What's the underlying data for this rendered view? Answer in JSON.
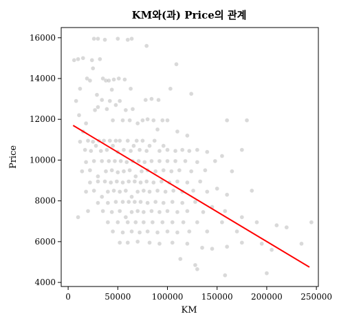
{
  "chart_data": {
    "type": "scatter",
    "title": "KM와(과) Price의 관계",
    "xlabel": "KM",
    "ylabel": "Price",
    "xlim": [
      -7000,
      252000
    ],
    "ylim": [
      3800,
      16500
    ],
    "xticks": [
      0,
      50000,
      100000,
      150000,
      200000,
      250000
    ],
    "yticks": [
      4000,
      6000,
      8000,
      10000,
      12000,
      14000,
      16000
    ],
    "grid": false,
    "point_color": "#808080",
    "point_alpha": 0.3,
    "line_color": "#ff0000",
    "regression_line": {
      "x": [
        5000,
        243000
      ],
      "y": [
        11700,
        4750
      ]
    },
    "series": [
      {
        "values": [
          [
            6000,
            14900
          ],
          [
            10000,
            14950
          ],
          [
            15000,
            15000
          ],
          [
            24000,
            14900
          ],
          [
            26000,
            15950
          ],
          [
            30000,
            15950
          ],
          [
            32000,
            14950
          ],
          [
            37000,
            15900
          ],
          [
            50000,
            15950
          ],
          [
            64000,
            15950
          ],
          [
            60000,
            15900
          ],
          [
            79000,
            15600
          ],
          [
            109000,
            14700
          ],
          [
            12000,
            13500
          ],
          [
            19000,
            14000
          ],
          [
            22000,
            13900
          ],
          [
            25000,
            14500
          ],
          [
            29000,
            13200
          ],
          [
            35000,
            14000
          ],
          [
            38000,
            13900
          ],
          [
            41000,
            13900
          ],
          [
            44000,
            13450
          ],
          [
            46000,
            13950
          ],
          [
            51000,
            14000
          ],
          [
            57000,
            13950
          ],
          [
            63000,
            13500
          ],
          [
            78000,
            12950
          ],
          [
            84000,
            13000
          ],
          [
            91000,
            12950
          ],
          [
            103000,
            13500
          ],
          [
            124000,
            13250
          ],
          [
            8000,
            12900
          ],
          [
            11000,
            12200
          ],
          [
            18000,
            11800
          ],
          [
            27000,
            12450
          ],
          [
            30000,
            12600
          ],
          [
            34000,
            12950
          ],
          [
            39000,
            12500
          ],
          [
            42000,
            12900
          ],
          [
            45000,
            11950
          ],
          [
            48000,
            12700
          ],
          [
            52000,
            12900
          ],
          [
            55000,
            11950
          ],
          [
            58000,
            12450
          ],
          [
            62000,
            11950
          ],
          [
            65000,
            12500
          ],
          [
            70000,
            11800
          ],
          [
            75000,
            11950
          ],
          [
            80000,
            12000
          ],
          [
            86000,
            11950
          ],
          [
            90000,
            11500
          ],
          [
            95000,
            11950
          ],
          [
            100000,
            11950
          ],
          [
            110000,
            11400
          ],
          [
            120000,
            11200
          ],
          [
            160000,
            11950
          ],
          [
            180000,
            11950
          ],
          [
            12000,
            10900
          ],
          [
            15000,
            11400
          ],
          [
            17000,
            10500
          ],
          [
            20000,
            10950
          ],
          [
            23000,
            10450
          ],
          [
            25000,
            10900
          ],
          [
            28000,
            10700
          ],
          [
            31000,
            10950
          ],
          [
            33000,
            10450
          ],
          [
            36000,
            10950
          ],
          [
            39000,
            10500
          ],
          [
            42000,
            10950
          ],
          [
            45000,
            10700
          ],
          [
            48000,
            10950
          ],
          [
            50000,
            10400
          ],
          [
            52000,
            10950
          ],
          [
            56000,
            10500
          ],
          [
            60000,
            10950
          ],
          [
            63000,
            10450
          ],
          [
            66000,
            10700
          ],
          [
            69000,
            10950
          ],
          [
            72000,
            10500
          ],
          [
            75000,
            10950
          ],
          [
            79000,
            10450
          ],
          [
            82000,
            10700
          ],
          [
            87000,
            10950
          ],
          [
            92000,
            10450
          ],
          [
            96000,
            10700
          ],
          [
            100000,
            10500
          ],
          [
            108000,
            10450
          ],
          [
            115000,
            10500
          ],
          [
            122000,
            10450
          ],
          [
            130000,
            10500
          ],
          [
            140000,
            10400
          ],
          [
            155000,
            10200
          ],
          [
            175000,
            10500
          ],
          [
            14000,
            9450
          ],
          [
            18000,
            9900
          ],
          [
            22000,
            9500
          ],
          [
            26000,
            9950
          ],
          [
            30000,
            9200
          ],
          [
            34000,
            9950
          ],
          [
            38000,
            9450
          ],
          [
            41000,
            9950
          ],
          [
            44000,
            9500
          ],
          [
            47000,
            9950
          ],
          [
            50000,
            9400
          ],
          [
            53000,
            9950
          ],
          [
            56000,
            9450
          ],
          [
            59000,
            9900
          ],
          [
            62000,
            9500
          ],
          [
            65000,
            9950
          ],
          [
            68000,
            9200
          ],
          [
            71000,
            9950
          ],
          [
            74000,
            9450
          ],
          [
            77000,
            9900
          ],
          [
            80000,
            9500
          ],
          [
            84000,
            9950
          ],
          [
            88000,
            9450
          ],
          [
            92000,
            9950
          ],
          [
            96000,
            9500
          ],
          [
            100000,
            9950
          ],
          [
            104000,
            9450
          ],
          [
            108000,
            9950
          ],
          [
            112000,
            9500
          ],
          [
            118000,
            9950
          ],
          [
            124000,
            9450
          ],
          [
            130000,
            9900
          ],
          [
            138000,
            9500
          ],
          [
            148000,
            9950
          ],
          [
            165000,
            9450
          ],
          [
            18000,
            8450
          ],
          [
            22000,
            8900
          ],
          [
            26000,
            8500
          ],
          [
            30000,
            8950
          ],
          [
            34000,
            8200
          ],
          [
            37000,
            8950
          ],
          [
            40000,
            8450
          ],
          [
            43000,
            8900
          ],
          [
            46000,
            8500
          ],
          [
            49000,
            8950
          ],
          [
            52000,
            8450
          ],
          [
            55000,
            8900
          ],
          [
            58000,
            8500
          ],
          [
            61000,
            8950
          ],
          [
            64000,
            8200
          ],
          [
            67000,
            8950
          ],
          [
            70000,
            8450
          ],
          [
            73000,
            8900
          ],
          [
            76000,
            8500
          ],
          [
            79000,
            8950
          ],
          [
            82000,
            8450
          ],
          [
            86000,
            8900
          ],
          [
            90000,
            8500
          ],
          [
            94000,
            8950
          ],
          [
            98000,
            8450
          ],
          [
            102000,
            8900
          ],
          [
            106000,
            8500
          ],
          [
            110000,
            8950
          ],
          [
            115000,
            8450
          ],
          [
            120000,
            8900
          ],
          [
            126000,
            8500
          ],
          [
            133000,
            8950
          ],
          [
            140000,
            8450
          ],
          [
            150000,
            8600
          ],
          [
            160000,
            8300
          ],
          [
            185000,
            8500
          ],
          [
            10000,
            7200
          ],
          [
            20000,
            7500
          ],
          [
            30000,
            7900
          ],
          [
            35000,
            7500
          ],
          [
            40000,
            7900
          ],
          [
            44000,
            7450
          ],
          [
            48000,
            7950
          ],
          [
            52000,
            7500
          ],
          [
            55000,
            7950
          ],
          [
            58000,
            7200
          ],
          [
            61000,
            7950
          ],
          [
            64000,
            7450
          ],
          [
            67000,
            7950
          ],
          [
            70000,
            7500
          ],
          [
            73000,
            7950
          ],
          [
            76000,
            7450
          ],
          [
            80000,
            7900
          ],
          [
            84000,
            7500
          ],
          [
            88000,
            7950
          ],
          [
            92000,
            7450
          ],
          [
            96000,
            7900
          ],
          [
            100000,
            7500
          ],
          [
            105000,
            7950
          ],
          [
            110000,
            7450
          ],
          [
            115000,
            7900
          ],
          [
            120000,
            7500
          ],
          [
            128000,
            7950
          ],
          [
            136000,
            7450
          ],
          [
            145000,
            7700
          ],
          [
            158000,
            7500
          ],
          [
            175000,
            7200
          ],
          [
            40000,
            6950
          ],
          [
            45000,
            6500
          ],
          [
            50000,
            6950
          ],
          [
            55000,
            6450
          ],
          [
            60000,
            6950
          ],
          [
            64000,
            6500
          ],
          [
            68000,
            6950
          ],
          [
            72000,
            6450
          ],
          [
            76000,
            6950
          ],
          [
            80000,
            6500
          ],
          [
            85000,
            6950
          ],
          [
            90000,
            6450
          ],
          [
            95000,
            6950
          ],
          [
            100000,
            6500
          ],
          [
            105000,
            6950
          ],
          [
            110000,
            6450
          ],
          [
            116000,
            6950
          ],
          [
            122000,
            6500
          ],
          [
            130000,
            6950
          ],
          [
            140000,
            6500
          ],
          [
            155000,
            6950
          ],
          [
            170000,
            6500
          ],
          [
            190000,
            6950
          ],
          [
            210000,
            6800
          ],
          [
            220000,
            6700
          ],
          [
            245000,
            6950
          ],
          [
            52000,
            5950
          ],
          [
            60000,
            5950
          ],
          [
            70000,
            6000
          ],
          [
            82000,
            5950
          ],
          [
            92000,
            5900
          ],
          [
            105000,
            5950
          ],
          [
            120000,
            5900
          ],
          [
            135000,
            5700
          ],
          [
            145000,
            5650
          ],
          [
            160000,
            5750
          ],
          [
            175000,
            5950
          ],
          [
            195000,
            5900
          ],
          [
            205000,
            5600
          ],
          [
            235000,
            5900
          ],
          [
            113000,
            5150
          ],
          [
            128000,
            4850
          ],
          [
            130000,
            4650
          ],
          [
            158000,
            4350
          ],
          [
            200000,
            4450
          ]
        ]
      }
    ]
  }
}
